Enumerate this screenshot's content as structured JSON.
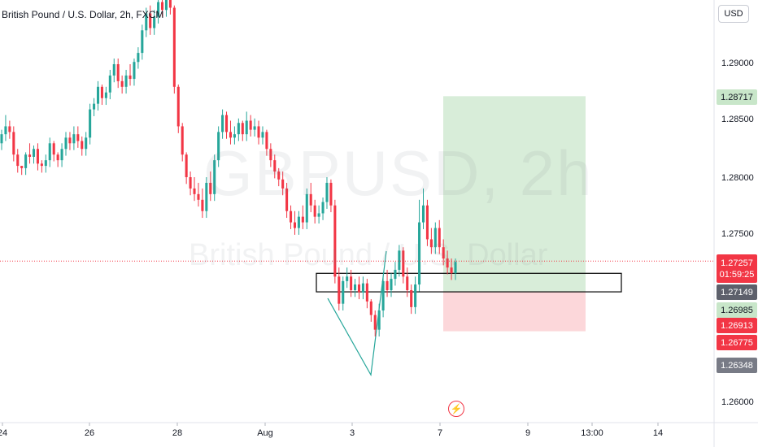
{
  "chart_data": {
    "type": "candlestick",
    "title": "British Pound / U.S. Dollar, 2h, FXCM",
    "watermark": {
      "symbol": "GBPUSD, 2h",
      "description": "British Pound / U.S. Dollar"
    },
    "currency": "USD",
    "ylim": [
      1.2585,
      1.2955
    ],
    "y_ticks": [
      "1.29000",
      "1.28500",
      "1.28000",
      "1.27500",
      "1.26000"
    ],
    "x_ticks": [
      "24",
      "26",
      "28",
      "Aug",
      "3",
      "7",
      "9",
      "13:00",
      "14"
    ],
    "current_price": {
      "value": "1.27257",
      "countdown": "01:59:25"
    },
    "price_badges": [
      {
        "value": "1.28717",
        "style": "green"
      },
      {
        "value": "1.27149",
        "style": "dark"
      },
      {
        "value": "1.26985",
        "style": "green"
      },
      {
        "value": "1.26913",
        "style": "red"
      },
      {
        "value": "1.26775",
        "style": "red"
      },
      {
        "value": "1.26348",
        "style": "dgray"
      }
    ],
    "position": {
      "type": "long",
      "entry": 1.26985,
      "target": 1.28717,
      "stop": 1.26636
    },
    "zone": {
      "top": 1.27149,
      "bottom": 1.26985
    },
    "trendline": {
      "from": 1.26913,
      "to": 1.2625
    },
    "colors": {
      "up": "#26a69a",
      "down": "#f23645",
      "profit": "rgba(76,175,80,0.22)",
      "loss": "rgba(242,54,69,0.2)"
    },
    "candles": [
      [
        1.283,
        1.2842,
        1.2838
      ],
      [
        1.2838,
        1.2855,
        1.2845
      ],
      [
        1.2845,
        1.285,
        1.284
      ],
      [
        1.284,
        1.2845,
        1.282
      ],
      [
        1.282,
        1.2825,
        1.281
      ],
      [
        1.281,
        1.281,
        1.2808
      ],
      [
        1.2808,
        1.2822,
        1.282
      ],
      [
        1.282,
        1.283,
        1.2818
      ],
      [
        1.2818,
        1.2828,
        1.2825
      ],
      [
        1.2825,
        1.283,
        1.2812
      ],
      [
        1.2812,
        1.2815,
        1.281
      ],
      [
        1.281,
        1.282,
        1.2815
      ],
      [
        1.2815,
        1.2835,
        1.283
      ],
      [
        1.283,
        1.2832,
        1.282
      ],
      [
        1.282,
        1.2822,
        1.2815
      ],
      [
        1.2815,
        1.283,
        1.2825
      ],
      [
        1.2825,
        1.284,
        1.2835
      ],
      [
        1.2835,
        1.284,
        1.283
      ],
      [
        1.283,
        1.2845,
        1.2838
      ],
      [
        1.2838,
        1.2845,
        1.2832
      ],
      [
        1.2832,
        1.2836,
        1.2825
      ],
      [
        1.2825,
        1.284,
        1.2835
      ],
      [
        1.2835,
        1.2865,
        1.286
      ],
      [
        1.286,
        1.287,
        1.2865
      ],
      [
        1.2865,
        1.2885,
        1.288
      ],
      [
        1.288,
        1.2882,
        1.287
      ],
      [
        1.287,
        1.288,
        1.2875
      ],
      [
        1.2875,
        1.2895,
        1.289
      ],
      [
        1.289,
        1.2905,
        1.29
      ],
      [
        1.29,
        1.2905,
        1.2885
      ],
      [
        1.2885,
        1.289,
        1.288
      ],
      [
        1.288,
        1.2895,
        1.289
      ],
      [
        1.289,
        1.29,
        1.2887
      ],
      [
        1.2887,
        1.2905,
        1.2902
      ],
      [
        1.2902,
        1.2915,
        1.291
      ],
      [
        1.291,
        1.2935,
        1.293
      ],
      [
        1.293,
        1.295,
        1.2945
      ],
      [
        1.2945,
        1.2952,
        1.2932
      ],
      [
        1.2932,
        1.2948,
        1.2942
      ],
      [
        1.2942,
        1.296,
        1.2955
      ],
      [
        1.2955,
        1.2962,
        1.2948
      ],
      [
        1.2948,
        1.2965,
        1.296
      ],
      [
        1.296,
        1.297,
        1.295
      ],
      [
        1.295,
        1.2952,
        1.288
      ],
      [
        1.288,
        1.2882,
        1.2845
      ],
      [
        1.2845,
        1.2848,
        1.282
      ],
      [
        1.282,
        1.2822,
        1.28
      ],
      [
        1.28,
        1.2805,
        1.279
      ],
      [
        1.279,
        1.28,
        1.2785
      ],
      [
        1.2785,
        1.2795,
        1.278
      ],
      [
        1.278,
        1.279,
        1.277
      ],
      [
        1.277,
        1.28,
        1.2795
      ],
      [
        1.2795,
        1.2805,
        1.2785
      ],
      [
        1.2785,
        1.282,
        1.2815
      ],
      [
        1.2815,
        1.2845,
        1.284
      ],
      [
        1.284,
        1.286,
        1.2855
      ],
      [
        1.2855,
        1.2858,
        1.284
      ],
      [
        1.284,
        1.285,
        1.2835
      ],
      [
        1.2835,
        1.2845,
        1.2838
      ],
      [
        1.2838,
        1.2852,
        1.2848
      ],
      [
        1.2848,
        1.285,
        1.2838
      ],
      [
        1.2838,
        1.2858,
        1.285
      ],
      [
        1.285,
        1.2855,
        1.2842
      ],
      [
        1.2842,
        1.2852,
        1.2845
      ],
      [
        1.2845,
        1.285,
        1.2835
      ],
      [
        1.2835,
        1.2845,
        1.284
      ],
      [
        1.284,
        1.2842,
        1.2825
      ],
      [
        1.2825,
        1.283,
        1.2815
      ],
      [
        1.2815,
        1.282,
        1.2805
      ],
      [
        1.2805,
        1.2808,
        1.2798
      ],
      [
        1.2798,
        1.2805,
        1.279
      ],
      [
        1.279,
        1.2795,
        1.277
      ],
      [
        1.277,
        1.2775,
        1.276
      ],
      [
        1.276,
        1.277,
        1.2755
      ],
      [
        1.2755,
        1.277,
        1.2765
      ],
      [
        1.2765,
        1.2775,
        1.276
      ],
      [
        1.276,
        1.279,
        1.2785
      ],
      [
        1.2785,
        1.2795,
        1.2775
      ],
      [
        1.2775,
        1.278,
        1.2765
      ],
      [
        1.2765,
        1.2775,
        1.2768
      ],
      [
        1.2768,
        1.2782,
        1.2778
      ],
      [
        1.2778,
        1.28,
        1.2795
      ],
      [
        1.2795,
        1.2798,
        1.2775
      ],
      [
        1.2775,
        1.278,
        1.2712
      ],
      [
        1.2712,
        1.272,
        1.2688
      ],
      [
        1.2688,
        1.2712,
        1.2708
      ],
      [
        1.2708,
        1.272,
        1.2712
      ],
      [
        1.2712,
        1.2718,
        1.27
      ],
      [
        1.27,
        1.271,
        1.2705
      ],
      [
        1.2705,
        1.2712,
        1.2698
      ],
      [
        1.2698,
        1.2712,
        1.2706
      ],
      [
        1.2706,
        1.271,
        1.269
      ],
      [
        1.269,
        1.2692,
        1.2678
      ],
      [
        1.2678,
        1.2682,
        1.2665
      ],
      [
        1.2665,
        1.2688,
        1.2682
      ],
      [
        1.2682,
        1.2712,
        1.2708
      ],
      [
        1.2708,
        1.2718,
        1.27
      ],
      [
        1.27,
        1.2715,
        1.271
      ],
      [
        1.271,
        1.2725,
        1.2718
      ],
      [
        1.2718,
        1.274,
        1.2735
      ],
      [
        1.2735,
        1.2738,
        1.2712
      ],
      [
        1.2712,
        1.272,
        1.27
      ],
      [
        1.27,
        1.2705,
        1.2685
      ],
      [
        1.2685,
        1.2712,
        1.2705
      ],
      [
        1.2705,
        1.278,
        1.276
      ],
      [
        1.276,
        1.279,
        1.2775
      ],
      [
        1.2775,
        1.278,
        1.2745
      ],
      [
        1.2745,
        1.2755,
        1.2738
      ],
      [
        1.2738,
        1.276,
        1.2755
      ],
      [
        1.2755,
        1.2762,
        1.2738
      ],
      [
        1.2738,
        1.2745,
        1.2728
      ],
      [
        1.2728,
        1.2735,
        1.272
      ],
      [
        1.272,
        1.2728,
        1.2715
      ],
      [
        1.2715,
        1.2728,
        1.2725
      ]
    ]
  },
  "event_icon": "earnings-lightning-icon"
}
